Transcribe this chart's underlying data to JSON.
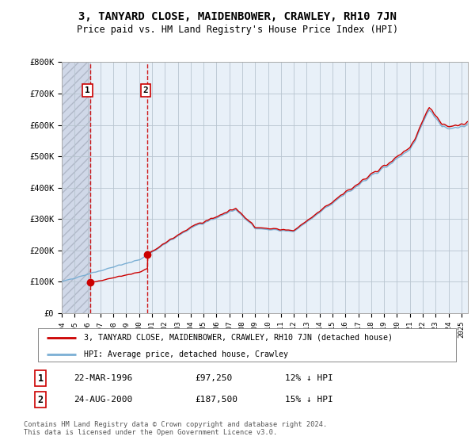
{
  "title": "3, TANYARD CLOSE, MAIDENBOWER, CRAWLEY, RH10 7JN",
  "subtitle": "Price paid vs. HM Land Registry's House Price Index (HPI)",
  "ylim": [
    0,
    800000
  ],
  "yticks": [
    0,
    100000,
    200000,
    300000,
    400000,
    500000,
    600000,
    700000,
    800000
  ],
  "ytick_labels": [
    "£0",
    "£100K",
    "£200K",
    "£300K",
    "£400K",
    "£500K",
    "£600K",
    "£700K",
    "£800K"
  ],
  "sale1_date": 1996.22,
  "sale1_price": 97250,
  "sale2_date": 2000.65,
  "sale2_price": 187500,
  "line_color_sales": "#cc0000",
  "line_color_hpi": "#7bafd4",
  "marker_color": "#cc0000",
  "dashed_line_color": "#cc0000",
  "hatch_bg_color": "#d0d8e8",
  "plot_bg_color": "#e8f0f8",
  "legend_line1": "3, TANYARD CLOSE, MAIDENBOWER, CRAWLEY, RH10 7JN (detached house)",
  "legend_line2": "HPI: Average price, detached house, Crawley",
  "table_row1": [
    "1",
    "22-MAR-1996",
    "£97,250",
    "12% ↓ HPI"
  ],
  "table_row2": [
    "2",
    "24-AUG-2000",
    "£187,500",
    "15% ↓ HPI"
  ],
  "footer": "Contains HM Land Registry data © Crown copyright and database right 2024.\nThis data is licensed under the Open Government Licence v3.0.",
  "bg_color": "#ffffff"
}
